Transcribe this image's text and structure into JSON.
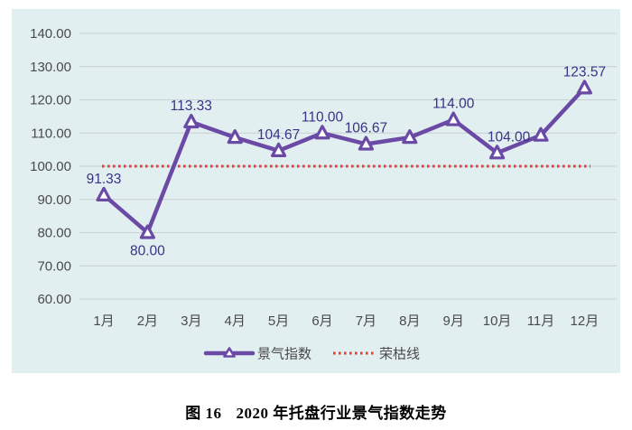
{
  "figure_caption": {
    "label": "图 16",
    "title": "2020 年托盘行业景气指数走势"
  },
  "chart_data": {
    "type": "line",
    "title": "2020年托盘行业景气指数走势",
    "categories": [
      "1月",
      "2月",
      "3月",
      "4月",
      "5月",
      "6月",
      "7月",
      "8月",
      "9月",
      "10月",
      "11月",
      "12月"
    ],
    "series": [
      {
        "name": "景气指数",
        "values": [
          91.33,
          80.0,
          113.33,
          108.67,
          104.67,
          110.0,
          106.67,
          108.67,
          114.0,
          104.0,
          109.33,
          123.57
        ],
        "point_labels": [
          "91.33",
          "80.00",
          "113.33",
          "",
          "104.67",
          "110.00",
          "106.67",
          "",
          "114.00",
          "104.00",
          "",
          "123.57"
        ],
        "color": "#6B4AA6",
        "marker": "triangle"
      },
      {
        "name": "荣枯线",
        "type": "threshold",
        "value": 100,
        "style": "dotted",
        "color": "#EE3B33"
      }
    ],
    "ylim": [
      60,
      140
    ],
    "ytick_step": 10,
    "ytick_labels": [
      "60.00",
      "70.00",
      "80.00",
      "90.00",
      "100.00",
      "110.00",
      "120.00",
      "130.00",
      "140.00"
    ],
    "grid": true,
    "legend_position": "bottom",
    "xlabel": "",
    "ylabel": ""
  },
  "colors": {
    "page_bg": "#FFFFFF",
    "panel_bg": "#E2EFF1",
    "gridline": "#C6CFD2",
    "axis_text": "#4A4A4A",
    "data_label": "#3A3286",
    "series_line": "#6B4AA6",
    "threshold": "#EE3B33",
    "legend_text": "#4A4A4A",
    "caption_text": "#000000"
  }
}
